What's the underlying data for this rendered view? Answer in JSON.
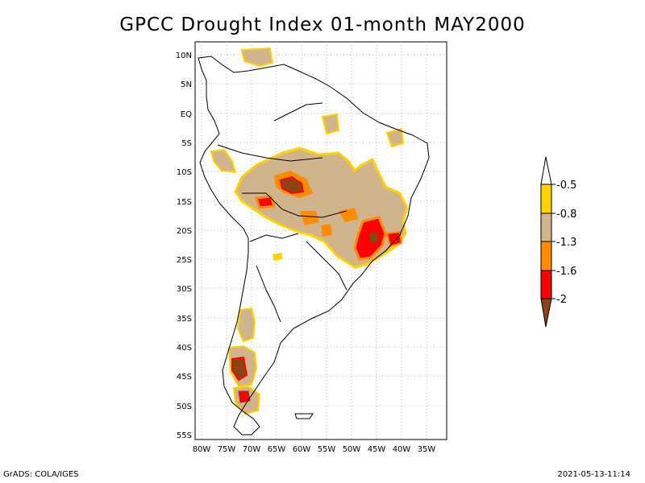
{
  "title": "GPCC Drought Index 01-month MAY2000",
  "footer_left": "GrADS: COLA/IGES",
  "footer_right": "2021-05-13-11:14",
  "map": {
    "lat_ticks": [
      "10N",
      "5N",
      "EQ",
      "5S",
      "10S",
      "15S",
      "20S",
      "25S",
      "30S",
      "35S",
      "40S",
      "45S",
      "50S",
      "55S"
    ],
    "lon_ticks": [
      "80W",
      "75W",
      "70W",
      "65W",
      "60W",
      "55W",
      "50W",
      "45W",
      "40W",
      "35W"
    ]
  },
  "legend": {
    "labels": [
      "-0.5",
      "-0.8",
      "-1.3",
      "-1.6",
      "-2"
    ],
    "colors": [
      "#ffffff",
      "#ffd200",
      "#d2b48c",
      "#ff8c00",
      "#ff0000",
      "#8b4513"
    ]
  }
}
